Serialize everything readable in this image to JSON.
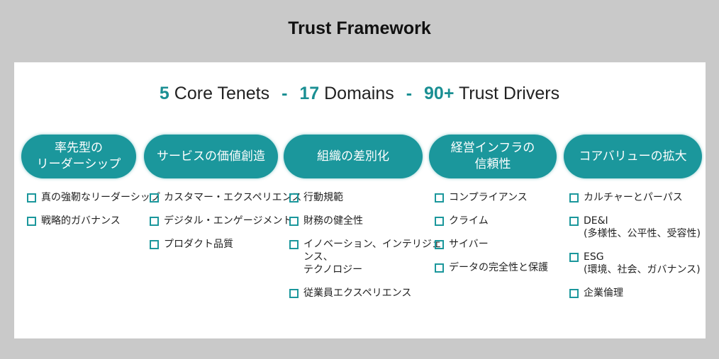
{
  "title": "Trust Framework",
  "headline": {
    "parts": [
      {
        "num": "5",
        "text": "Core Tenets"
      },
      {
        "num": "17",
        "text": "Domains"
      },
      {
        "num": "90+",
        "text": "Trust Drivers"
      }
    ],
    "separator": "-"
  },
  "accent_color": "#1b979c",
  "columns": [
    {
      "heading": "率先型の\nリーダーシップ",
      "items": [
        "真の強靭なリーダーシップ",
        "戦略的ガバナンス"
      ]
    },
    {
      "heading": "サービスの価値創造",
      "items": [
        "カスタマー・エクスペリエンス",
        "デジタル・エンゲージメント",
        "プロダクト品質"
      ]
    },
    {
      "heading": "組織の差別化",
      "items": [
        "行動規範",
        "財務の健全性",
        "イノベーション、インテリジェンス、\nテクノロジー",
        "従業員エクスペリエンス"
      ]
    },
    {
      "heading": "経営インフラの\n信頼性",
      "items": [
        "コンプライアンス",
        "クライム",
        "サイバー",
        "データの完全性と保護"
      ]
    },
    {
      "heading": "コアバリューの拡大",
      "items": [
        "カルチャーとパーパス",
        "DE&I\n(多様性、公平性、受容性)",
        "ESG\n(環境、社会、ガバナンス)",
        "企業倫理"
      ]
    }
  ]
}
